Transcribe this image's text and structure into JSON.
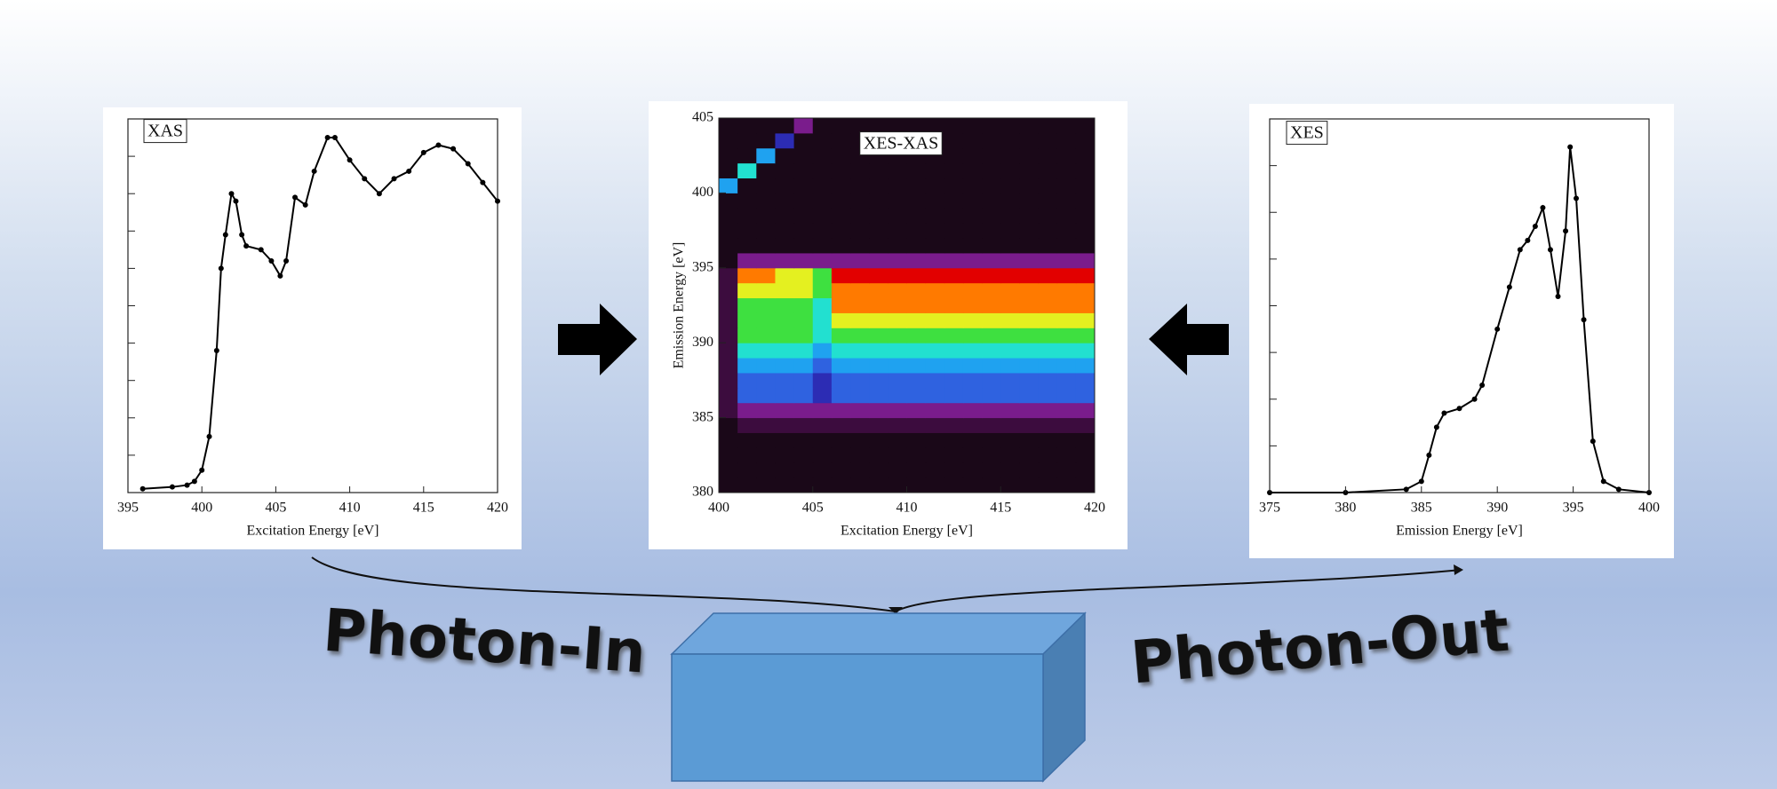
{
  "chart_data": [
    {
      "type": "line",
      "annotation": "XAS",
      "xlabel": "Excitation Energy [eV]",
      "color": "#000000",
      "x": [
        396,
        398,
        399,
        399.5,
        400,
        400.5,
        401,
        401.3,
        401.6,
        402,
        402.3,
        402.7,
        403,
        404,
        404.7,
        405.3,
        405.7,
        406.3,
        407,
        407.6,
        408.5,
        409,
        410,
        411,
        412,
        413,
        414,
        415,
        416,
        417,
        418,
        419,
        420
      ],
      "values": [
        0.1,
        0.15,
        0.2,
        0.3,
        0.6,
        1.5,
        3.8,
        6.0,
        6.9,
        8.0,
        7.8,
        6.9,
        6.6,
        6.5,
        6.2,
        5.8,
        6.2,
        7.9,
        7.7,
        8.6,
        9.5,
        9.5,
        8.9,
        8.4,
        8.0,
        8.4,
        8.6,
        9.1,
        9.3,
        9.2,
        8.8,
        8.3,
        7.8
      ],
      "xlim": [
        395,
        420
      ],
      "xticks": [
        395,
        400,
        405,
        410,
        415,
        420
      ],
      "ylim": [
        0,
        10
      ],
      "yticks": [
        1,
        2,
        3,
        4,
        5,
        6,
        7,
        8,
        9
      ],
      "ytick_labels": false
    },
    {
      "type": "heatmap",
      "annotation": "XES-XAS",
      "xlabel": "Excitation Energy [eV]",
      "ylabel": "Emission Energy [eV]",
      "xbins": [
        400,
        401,
        402,
        403,
        404,
        405,
        406,
        407,
        408,
        409,
        410,
        411,
        412,
        413,
        414,
        415,
        416,
        417,
        418,
        419,
        420
      ],
      "ybins": [
        380,
        381,
        382,
        383,
        384,
        385,
        386,
        387,
        388,
        389,
        390,
        391,
        392,
        393,
        394,
        395,
        396,
        397,
        398,
        399,
        400,
        401,
        402,
        403,
        404,
        405
      ],
      "values": [
        [
          0,
          0,
          0,
          0,
          0,
          0,
          0,
          0,
          0,
          0,
          0,
          0,
          0,
          0,
          0,
          0,
          0,
          0,
          0,
          0
        ],
        [
          0,
          0,
          0,
          0,
          0,
          0,
          0,
          0,
          0,
          0,
          0,
          0,
          0,
          0,
          0,
          0,
          0,
          0,
          0,
          0
        ],
        [
          0,
          0,
          0,
          0,
          0,
          0,
          0,
          0,
          0,
          0,
          0,
          0,
          0,
          0,
          0,
          0,
          0,
          0,
          0,
          0
        ],
        [
          0,
          0,
          0,
          0,
          0,
          0,
          0,
          0,
          0,
          0,
          0,
          0,
          0,
          0,
          0,
          0,
          0,
          0,
          0,
          0
        ],
        [
          0,
          1,
          1,
          1,
          1,
          1,
          1,
          1,
          1,
          1,
          1,
          1,
          1,
          1,
          1,
          1,
          1,
          1,
          1,
          1
        ],
        [
          1,
          2,
          2,
          2,
          2,
          2,
          2,
          2,
          2,
          2,
          2,
          2,
          2,
          2,
          2,
          2,
          2,
          2,
          2,
          2
        ],
        [
          1,
          4,
          4,
          4,
          4,
          3,
          4,
          4,
          4,
          4,
          4,
          4,
          4,
          4,
          4,
          4,
          4,
          4,
          4,
          4
        ],
        [
          1,
          4,
          4,
          4,
          4,
          3,
          4,
          4,
          4,
          4,
          4,
          4,
          4,
          4,
          4,
          4,
          4,
          4,
          4,
          4
        ],
        [
          1,
          5,
          5,
          5,
          5,
          4,
          5,
          5,
          5,
          5,
          5,
          5,
          5,
          5,
          5,
          5,
          5,
          5,
          5,
          5
        ],
        [
          1,
          6,
          6,
          6,
          6,
          5,
          6,
          6,
          6,
          6,
          6,
          6,
          6,
          6,
          6,
          6,
          6,
          6,
          6,
          6
        ],
        [
          1,
          7,
          7,
          7,
          7,
          6,
          7,
          7,
          7,
          7,
          7,
          7,
          7,
          7,
          7,
          7,
          7,
          7,
          7,
          7
        ],
        [
          1,
          7,
          7,
          7,
          7,
          6,
          8,
          8,
          8,
          8,
          8,
          8,
          8,
          8,
          8,
          8,
          8,
          8,
          8,
          8
        ],
        [
          1,
          7,
          7,
          7,
          7,
          6,
          9,
          9,
          9,
          9,
          9,
          9,
          9,
          9,
          9,
          9,
          9,
          9,
          9,
          9
        ],
        [
          1,
          8,
          8,
          8,
          8,
          7,
          9,
          9,
          9,
          9,
          9,
          9,
          9,
          9,
          9,
          9,
          9,
          9,
          9,
          9
        ],
        [
          1,
          9,
          9,
          8,
          8,
          7,
          10,
          10,
          10,
          10,
          10,
          10,
          10,
          10,
          10,
          10,
          10,
          10,
          10,
          10
        ],
        [
          0,
          2,
          2,
          2,
          2,
          2,
          2,
          2,
          2,
          2,
          2,
          2,
          2,
          2,
          2,
          2,
          2,
          2,
          2,
          2
        ],
        [
          0,
          0,
          0,
          0,
          0,
          0,
          0,
          0,
          0,
          0,
          0,
          0,
          0,
          0,
          0,
          0,
          0,
          0,
          0,
          0
        ],
        [
          0,
          0,
          0,
          0,
          0,
          0,
          0,
          0,
          0,
          0,
          0,
          0,
          0,
          0,
          0,
          0,
          0,
          0,
          0,
          0
        ],
        [
          0,
          0,
          0,
          0,
          0,
          0,
          0,
          0,
          0,
          0,
          0,
          0,
          0,
          0,
          0,
          0,
          0,
          0,
          0,
          0
        ],
        [
          0,
          0,
          0,
          0,
          0,
          0,
          0,
          0,
          0,
          0,
          0,
          0,
          0,
          0,
          0,
          0,
          0,
          0,
          0,
          0
        ],
        [
          5,
          0,
          0,
          0,
          0,
          0,
          0,
          0,
          0,
          0,
          0,
          0,
          0,
          0,
          0,
          0,
          0,
          0,
          0,
          0
        ],
        [
          0,
          6,
          0,
          0,
          0,
          0,
          0,
          0,
          0,
          0,
          0,
          0,
          0,
          0,
          0,
          0,
          0,
          0,
          0,
          0
        ],
        [
          0,
          0,
          5,
          0,
          0,
          0,
          0,
          0,
          0,
          0,
          0,
          0,
          0,
          0,
          0,
          0,
          0,
          0,
          0,
          0
        ],
        [
          0,
          0,
          0,
          3,
          0,
          0,
          0,
          0,
          0,
          0,
          0,
          0,
          0,
          0,
          0,
          0,
          0,
          0,
          0,
          0
        ],
        [
          0,
          0,
          0,
          0,
          2,
          0,
          0,
          0,
          0,
          0,
          0,
          0,
          0,
          0,
          0,
          0,
          0,
          0,
          0,
          0
        ]
      ],
      "zlim": [
        0,
        10
      ],
      "colormap": [
        "#1a0818",
        "#3c0c3e",
        "#7a1c8c",
        "#2c2cb4",
        "#2f62e0",
        "#1fa2f0",
        "#22e0d0",
        "#3ee040",
        "#e4f020",
        "#ff7a00",
        "#e20000"
      ],
      "xlim": [
        400,
        420
      ],
      "xticks": [
        400,
        405,
        410,
        415,
        420
      ],
      "ylim": [
        380,
        405
      ],
      "yticks": [
        380,
        385,
        390,
        395,
        400,
        405
      ]
    },
    {
      "type": "line",
      "annotation": "XES",
      "xlabel": "Emission Energy [eV]",
      "color": "#000000",
      "x": [
        375,
        380,
        384,
        385,
        385.5,
        386,
        386.5,
        387.5,
        388.5,
        389,
        390,
        390.8,
        391.5,
        392,
        392.5,
        393,
        393.5,
        394,
        394.5,
        394.8,
        395.2,
        395.7,
        396.3,
        397,
        398,
        400
      ],
      "values": [
        0,
        0,
        0.07,
        0.24,
        0.8,
        1.4,
        1.7,
        1.8,
        2.0,
        2.3,
        3.5,
        4.4,
        5.2,
        5.4,
        5.7,
        6.1,
        5.2,
        4.2,
        5.6,
        7.4,
        6.3,
        3.7,
        1.1,
        0.24,
        0.07,
        0
      ],
      "xlim": [
        375,
        400
      ],
      "xticks": [
        375,
        380,
        385,
        390,
        395,
        400
      ],
      "ylim": [
        0,
        8
      ],
      "yticks": [
        1,
        2,
        3,
        4,
        5,
        6,
        7
      ],
      "ytick_labels": false
    }
  ],
  "labels": {
    "photon_in": "Photon-In",
    "photon_out": "Photon-Out"
  }
}
